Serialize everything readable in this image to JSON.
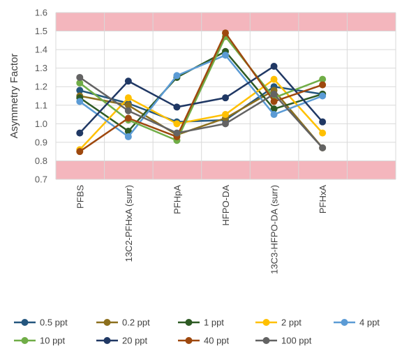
{
  "chart_data": {
    "type": "line",
    "title": "",
    "xlabel": "",
    "ylabel": "Asymmetry Factor",
    "ylim": [
      0.7,
      1.6
    ],
    "yticks": [
      "0.7",
      "0.8",
      "0.9",
      "1.0",
      "1.1",
      "1.2",
      "1.3",
      "1.4",
      "1.5",
      "1.6"
    ],
    "categories": [
      "PFBS",
      "13C2-PFHxA (surr)",
      "PFHpA",
      "HFPO-DA",
      "13C3-HFPO-DA (surr)",
      "PFHxA"
    ],
    "acceptance_bands": [
      {
        "from": 1.5,
        "to": 1.6,
        "color": "#f4b6bd"
      },
      {
        "from": 0.7,
        "to": 0.8,
        "color": "#f4b6bd"
      }
    ],
    "grid": true,
    "legend_position": "bottom",
    "series": [
      {
        "name": "0.5 ppt",
        "color": "#24567e",
        "values": [
          1.18,
          1.11,
          1.01,
          1.02,
          1.2,
          1.16
        ]
      },
      {
        "name": "0.2 ppt",
        "color": "#8c6f1d",
        "values": [
          1.15,
          1.1,
          0.94,
          1.03,
          1.18,
          0.87
        ]
      },
      {
        "name": "1 ppt",
        "color": "#2d5a23",
        "values": [
          1.14,
          0.96,
          1.25,
          1.39,
          1.08,
          1.16
        ]
      },
      {
        "name": "2 ppt",
        "color": "#ffc000",
        "values": [
          0.86,
          1.14,
          1.0,
          1.05,
          1.24,
          0.95
        ]
      },
      {
        "name": "4 ppt",
        "color": "#5b9bd5",
        "values": [
          1.12,
          0.93,
          1.26,
          1.37,
          1.05,
          1.15
        ]
      },
      {
        "name": "10 ppt",
        "color": "#70ad47",
        "values": [
          1.22,
          1.02,
          0.91,
          1.47,
          1.14,
          1.24
        ]
      },
      {
        "name": "20 ppt",
        "color": "#203864",
        "values": [
          0.95,
          1.23,
          1.09,
          1.14,
          1.31,
          1.01
        ]
      },
      {
        "name": "40 ppt",
        "color": "#9e480e",
        "values": [
          0.85,
          1.03,
          0.93,
          1.49,
          1.12,
          1.21
        ]
      },
      {
        "name": "100 ppt",
        "color": "#636363",
        "values": [
          1.25,
          1.07,
          0.95,
          1.0,
          1.16,
          0.87
        ]
      }
    ]
  }
}
